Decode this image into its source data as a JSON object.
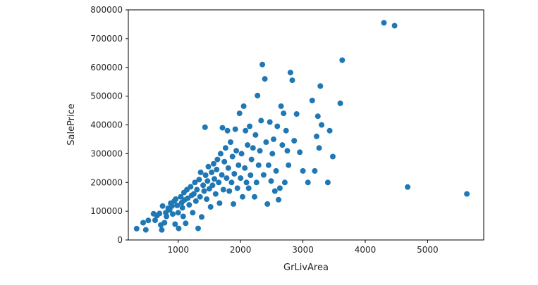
{
  "chart_data": {
    "type": "scatter",
    "xlabel": "GrLivArea",
    "ylabel": "SalePrice",
    "xlim": [
      200,
      5900
    ],
    "ylim": [
      0,
      800000
    ],
    "xticks": [
      1000,
      2000,
      3000,
      4000,
      5000
    ],
    "yticks": [
      0,
      100000,
      200000,
      300000,
      400000,
      500000,
      600000,
      700000,
      800000
    ],
    "grid": false,
    "legend": "none",
    "marker_color": "#1f77b4",
    "points": [
      [
        334,
        39300
      ],
      [
        438,
        60000
      ],
      [
        480,
        35300
      ],
      [
        520,
        68000
      ],
      [
        605,
        91000
      ],
      [
        630,
        68500
      ],
      [
        660,
        85000
      ],
      [
        700,
        92000
      ],
      [
        720,
        52000
      ],
      [
        736,
        35000
      ],
      [
        750,
        118000
      ],
      [
        780,
        60000
      ],
      [
        800,
        95000
      ],
      [
        812,
        82000
      ],
      [
        840,
        110000
      ],
      [
        864,
        105000
      ],
      [
        880,
        128000
      ],
      [
        900,
        118000
      ],
      [
        912,
        90000
      ],
      [
        936,
        135000
      ],
      [
        950,
        55000
      ],
      [
        960,
        142000
      ],
      [
        984,
        120000
      ],
      [
        1000,
        95000
      ],
      [
        1008,
        40000
      ],
      [
        1040,
        150000
      ],
      [
        1056,
        130000
      ],
      [
        1068,
        112000
      ],
      [
        1080,
        82000
      ],
      [
        1092,
        165000
      ],
      [
        1100,
        139000
      ],
      [
        1120,
        58000
      ],
      [
        1140,
        175000
      ],
      [
        1152,
        145000
      ],
      [
        1176,
        122000
      ],
      [
        1200,
        185000
      ],
      [
        1216,
        155000
      ],
      [
        1232,
        95000
      ],
      [
        1250,
        160000
      ],
      [
        1268,
        200000
      ],
      [
        1284,
        135000
      ],
      [
        1300,
        175000
      ],
      [
        1320,
        40000
      ],
      [
        1336,
        210000
      ],
      [
        1350,
        150000
      ],
      [
        1360,
        235000
      ],
      [
        1376,
        80000
      ],
      [
        1400,
        190000
      ],
      [
        1416,
        170000
      ],
      [
        1430,
        392000
      ],
      [
        1440,
        225000
      ],
      [
        1456,
        142000
      ],
      [
        1470,
        205000
      ],
      [
        1484,
        255000
      ],
      [
        1500,
        178000
      ],
      [
        1520,
        115000
      ],
      [
        1536,
        235000
      ],
      [
        1550,
        190000
      ],
      [
        1568,
        265000
      ],
      [
        1580,
        212000
      ],
      [
        1600,
        160000
      ],
      [
        1616,
        245000
      ],
      [
        1630,
        280000
      ],
      [
        1650,
        200000
      ],
      [
        1664,
        128000
      ],
      [
        1680,
        300000
      ],
      [
        1700,
        226000
      ],
      [
        1710,
        390000
      ],
      [
        1724,
        175000
      ],
      [
        1740,
        272000
      ],
      [
        1760,
        320000
      ],
      [
        1776,
        215000
      ],
      [
        1790,
        380000
      ],
      [
        1804,
        250000
      ],
      [
        1820,
        170000
      ],
      [
        1840,
        340000
      ],
      [
        1856,
        200000
      ],
      [
        1870,
        290000
      ],
      [
        1886,
        125000
      ],
      [
        1900,
        230000
      ],
      [
        1916,
        385000
      ],
      [
        1932,
        310000
      ],
      [
        1950,
        180000
      ],
      [
        1968,
        260000
      ],
      [
        1984,
        440000
      ],
      [
        2000,
        215000
      ],
      [
        2016,
        300000
      ],
      [
        2032,
        150000
      ],
      [
        2050,
        465000
      ],
      [
        2068,
        250000
      ],
      [
        2080,
        380000
      ],
      [
        2096,
        200000
      ],
      [
        2112,
        330000
      ],
      [
        2130,
        180000
      ],
      [
        2146,
        395000
      ],
      [
        2160,
        225000
      ],
      [
        2176,
        280000
      ],
      [
        2200,
        320000
      ],
      [
        2224,
        150000
      ],
      [
        2240,
        365000
      ],
      [
        2256,
        200000
      ],
      [
        2272,
        502000
      ],
      [
        2290,
        260000
      ],
      [
        2310,
        310000
      ],
      [
        2330,
        415000
      ],
      [
        2350,
        610000
      ],
      [
        2370,
        226000
      ],
      [
        2390,
        560000
      ],
      [
        2410,
        340000
      ],
      [
        2430,
        125000
      ],
      [
        2450,
        260000
      ],
      [
        2470,
        410000
      ],
      [
        2490,
        205000
      ],
      [
        2510,
        300000
      ],
      [
        2530,
        350000
      ],
      [
        2550,
        170000
      ],
      [
        2570,
        240000
      ],
      [
        2590,
        395000
      ],
      [
        2610,
        140000
      ],
      [
        2630,
        180000
      ],
      [
        2650,
        465000
      ],
      [
        2670,
        330000
      ],
      [
        2690,
        440000
      ],
      [
        2710,
        200000
      ],
      [
        2730,
        380000
      ],
      [
        2750,
        310000
      ],
      [
        2770,
        260000
      ],
      [
        2800,
        582000
      ],
      [
        2830,
        555000
      ],
      [
        2860,
        345000
      ],
      [
        2900,
        438000
      ],
      [
        2950,
        305000
      ],
      [
        3000,
        240000
      ],
      [
        3080,
        200000
      ],
      [
        3150,
        485000
      ],
      [
        3190,
        240000
      ],
      [
        3220,
        360000
      ],
      [
        3240,
        430000
      ],
      [
        3260,
        320000
      ],
      [
        3280,
        535000
      ],
      [
        3300,
        400000
      ],
      [
        3400,
        200000
      ],
      [
        3430,
        380000
      ],
      [
        3480,
        290000
      ],
      [
        3600,
        475000
      ],
      [
        3630,
        625000
      ],
      [
        4300,
        755000
      ],
      [
        4470,
        745000
      ],
      [
        4680,
        184000
      ],
      [
        5630,
        160000
      ]
    ]
  }
}
